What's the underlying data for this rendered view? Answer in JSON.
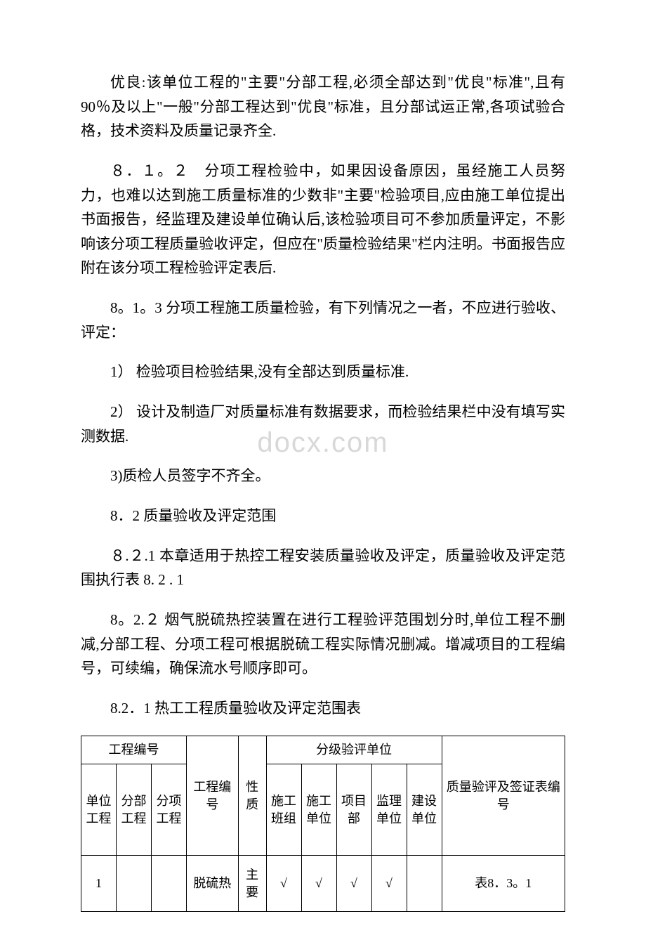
{
  "paragraphs": {
    "p1": "优良:该单位工程的\"主要\"分部工程,必须全部达到\"优良\"标准\",且有 90％及以上\"一般\"分部工程达到\"优良\"标准，且分部试运正常,各项试验合格，技术资料及质量记录齐全.",
    "p2": "８．１。２　分项工程检验中，如果因设备原因，虽经施工人员努力，也难以达到施工质量标准的少数非\"主要\"检验项目,应由施工单位提出书面报告，经监理及建设单位确认后,该检验项目可不参加质量评定，不影响该分项工程质量验收评定，但应在\"质量检验结果\"栏内注明。书面报告应附在该分项工程检验评定表后.",
    "p3": "8。1。3 分项工程施工质量检验，有下列情况之一者，不应进行验收、评定：",
    "p4": "1） 检验项目检验结果,没有全部达到质量标准.",
    "p5": "2） 设计及制造厂对质量标准有数据要求，而检验结果栏中没有填写实测数据.",
    "p6": "3)质检人员签字不齐全。",
    "p7": "8．2 质量验收及评定范围",
    "p8": "８.２.1 本章适用于热控工程安装质量验收及评定，质量验收及评定范围执行表 8. 2 . 1",
    "p9": "8。2.２ 烟气脱硫热控装置在进行工程验评范围划分时,单位工程不删减,分部工程、分项工程可根据脱硫工程实际情况删减。增减项目的工程编号，可续编，确保流水号顺序即可。",
    "p10": "8.2．1 热工工程质量验收及评定范围表"
  },
  "watermark": "docx.com",
  "table": {
    "header1": {
      "c1": "工程编号",
      "c2": "",
      "c3": "",
      "c4": "分级验评单位",
      "c5": ""
    },
    "header2": {
      "c1": "单位工程",
      "c2": "分部工程",
      "c3": "分项工程",
      "c4": "工程编号",
      "c5": "性质",
      "c6": "施工班组",
      "c7": "施工单位",
      "c8": "项目部",
      "c9": "监理单位",
      "c10": "建设单位",
      "c11": "质量验评及签证表编号"
    },
    "row1": {
      "c1": "1",
      "c2": "",
      "c3": "",
      "c4": "脱硫热",
      "c5": "主要",
      "c6": "√",
      "c7": "√",
      "c8": "√",
      "c9": "√",
      "c10": "",
      "c11": "表8．3。1"
    }
  }
}
